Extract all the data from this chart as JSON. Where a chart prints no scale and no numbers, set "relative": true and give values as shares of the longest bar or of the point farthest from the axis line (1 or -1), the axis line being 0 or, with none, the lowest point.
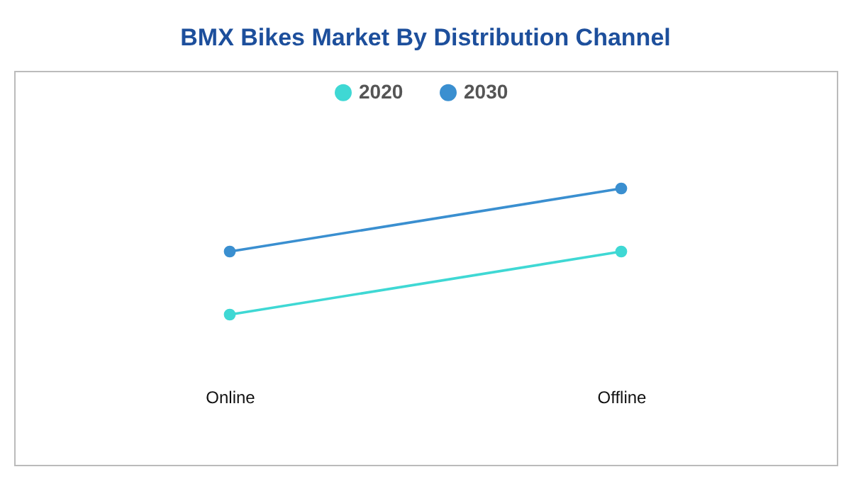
{
  "chart_data": {
    "type": "line",
    "title": "BMX Bikes Market By Distribution Channel",
    "categories": [
      "Online",
      "Offline"
    ],
    "relative": true,
    "series": [
      {
        "name": "2020",
        "color": "#3fd8d4",
        "values": [
          0,
          0.5
        ]
      },
      {
        "name": "2030",
        "color": "#3a8fd0",
        "values": [
          0.5,
          1
        ]
      }
    ],
    "legend": "top",
    "marker": "circle",
    "grid": false
  }
}
